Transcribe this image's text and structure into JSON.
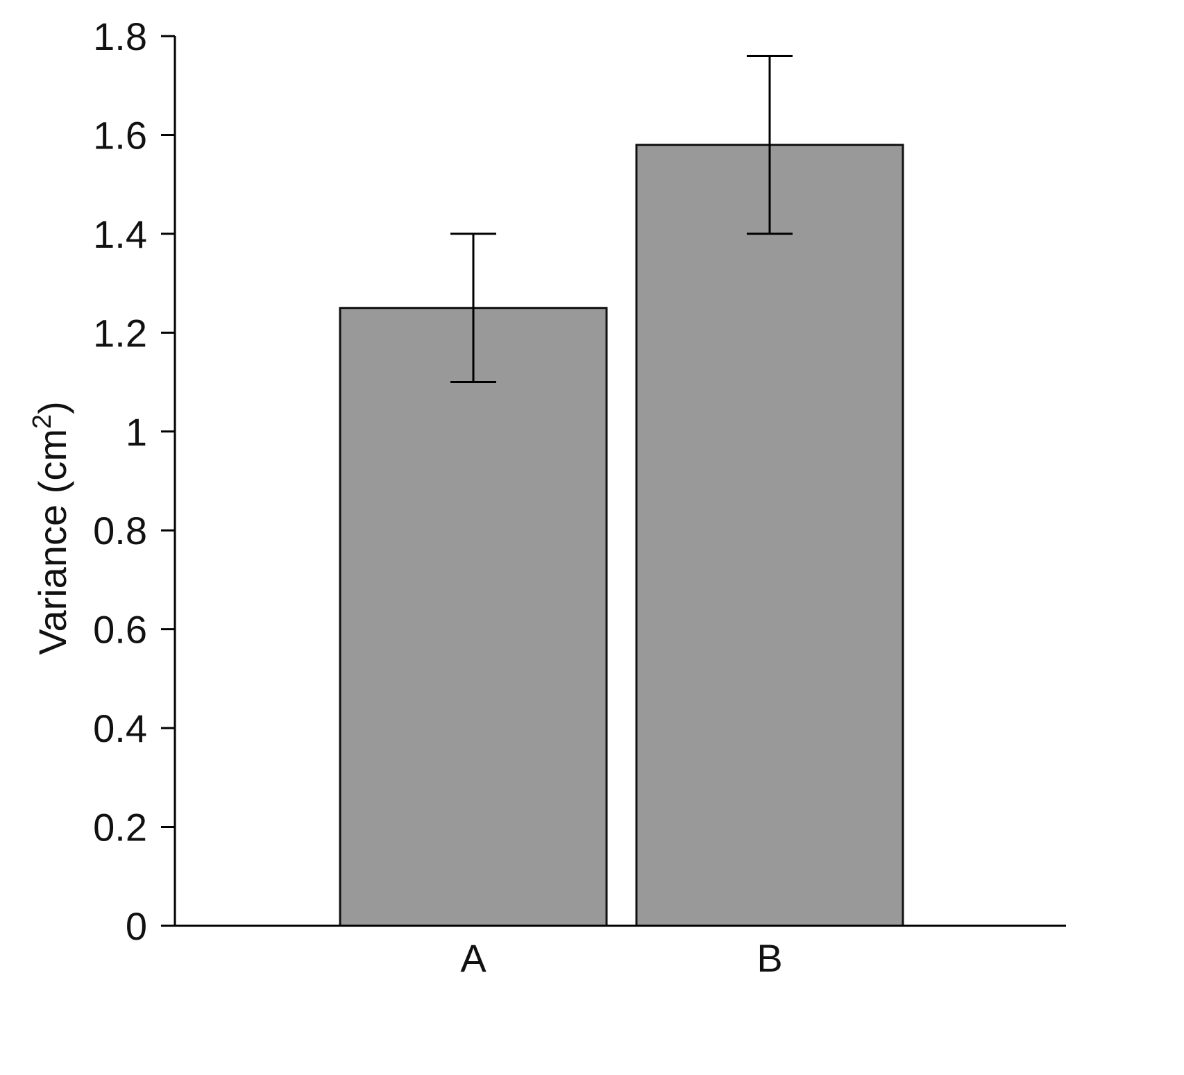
{
  "chart_data": {
    "type": "bar",
    "categories": [
      "A",
      "B"
    ],
    "values": [
      1.25,
      1.58
    ],
    "error_low": [
      1.1,
      1.4
    ],
    "error_high": [
      1.4,
      1.76
    ],
    "title": "",
    "xlabel": "",
    "ylabel": "Variance (cm²)",
    "ylabel_main": "Variance (cm",
    "ylabel_sup": "2",
    "ylabel_close": ")",
    "ylim": [
      0,
      1.8
    ],
    "yticks": [
      "0",
      "0.2",
      "0.4",
      "0.6",
      "0.8",
      "1",
      "1.2",
      "1.4",
      "1.6",
      "1.8"
    ],
    "ytick_values": [
      0,
      0.2,
      0.4,
      0.6,
      0.8,
      1,
      1.2,
      1.4,
      1.6,
      1.8
    ],
    "grid": false,
    "bar_color": "#999999"
  }
}
